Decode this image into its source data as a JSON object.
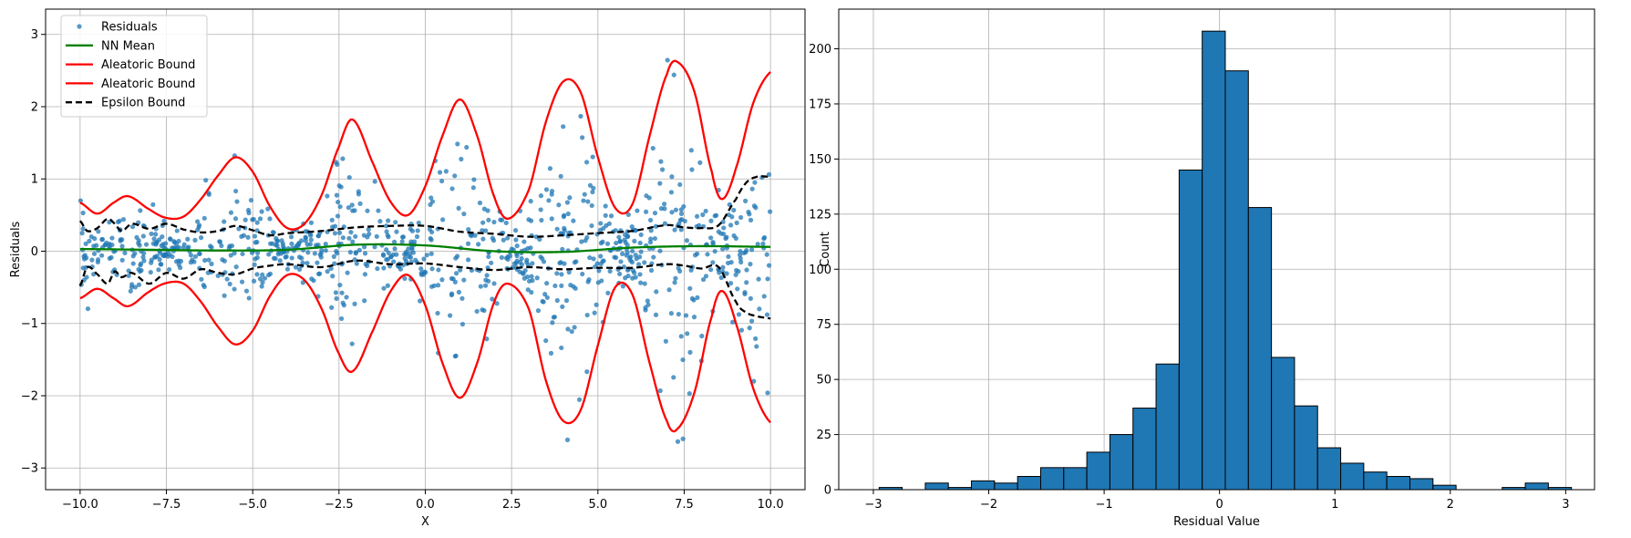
{
  "chart_data": [
    {
      "type": "scatter",
      "xlabel": "X",
      "ylabel": "Residuals",
      "xlim": [
        -11.0,
        11.0
      ],
      "ylim": [
        -3.3,
        3.35
      ],
      "xticks": [
        -10.0,
        -7.5,
        -5.0,
        -2.5,
        0.0,
        2.5,
        5.0,
        7.5,
        10.0
      ],
      "xtick_labels": [
        "−10.0",
        "−7.5",
        "−5.0",
        "−2.5",
        "0.0",
        "2.5",
        "5.0",
        "7.5",
        "10.0"
      ],
      "yticks": [
        -3,
        -2,
        -1,
        0,
        1,
        2,
        3
      ],
      "ytick_labels": [
        "−3",
        "−2",
        "−1",
        "0",
        "1",
        "2",
        "3"
      ],
      "grid": true,
      "legend_position": "top-left",
      "legend": [
        "Residuals",
        "NN Mean",
        "Aleatoric Bound",
        "Aleatoric Bound",
        "Epsilon Bound"
      ],
      "colors": {
        "residuals": "#1f77b4",
        "nn_mean": "#008000",
        "aleatoric": "#ff0000",
        "epsilon": "#000000"
      },
      "series": {
        "residuals": {
          "n_points": 1000,
          "x_range": [
            -10,
            10
          ]
        },
        "nn_mean": {
          "x": [
            -10,
            -8,
            -6,
            -4,
            -2,
            0,
            2,
            4,
            6,
            8,
            10
          ],
          "y": [
            0.03,
            0.02,
            0.01,
            0.02,
            0.09,
            0.08,
            0.0,
            -0.01,
            0.05,
            0.07,
            0.06
          ]
        },
        "aleatoric_upper": {
          "x": [
            -10,
            -9.5,
            -9,
            -8.6,
            -8,
            -7.5,
            -7,
            -6.5,
            -6,
            -5.5,
            -5,
            -4.5,
            -4,
            -3.5,
            -3,
            -2.5,
            -2.1,
            -1.5,
            -1,
            -0.5,
            0,
            0.5,
            1,
            1.5,
            2,
            2.4,
            3,
            3.5,
            4,
            4.5,
            5,
            5.5,
            6,
            6.5,
            7,
            7.3,
            7.8,
            8.3,
            8.6,
            9,
            9.5,
            10
          ],
          "y": [
            0.67,
            0.52,
            0.68,
            0.76,
            0.58,
            0.46,
            0.48,
            0.72,
            1.05,
            1.3,
            1.1,
            0.62,
            0.32,
            0.38,
            0.78,
            1.45,
            1.82,
            1.2,
            0.68,
            0.5,
            0.9,
            1.6,
            2.1,
            1.6,
            0.75,
            0.45,
            0.85,
            1.8,
            2.35,
            2.2,
            1.3,
            0.6,
            0.65,
            1.6,
            2.45,
            2.62,
            2.2,
            1.1,
            0.72,
            1.15,
            2.05,
            2.48
          ]
        },
        "aleatoric_lower": {
          "x": [
            -10,
            -9.5,
            -9,
            -8.6,
            -8,
            -7.5,
            -7,
            -6.5,
            -6,
            -5.5,
            -5,
            -4.5,
            -4,
            -3.5,
            -3,
            -2.5,
            -2.1,
            -1.5,
            -1,
            -0.5,
            0,
            0.5,
            1,
            1.5,
            2,
            2.4,
            3,
            3.5,
            4,
            4.5,
            5,
            5.5,
            6,
            6.5,
            7,
            7.3,
            7.8,
            8.3,
            8.6,
            9,
            9.5,
            10
          ],
          "y": [
            -0.65,
            -0.52,
            -0.66,
            -0.76,
            -0.56,
            -0.44,
            -0.45,
            -0.7,
            -1.05,
            -1.29,
            -1.1,
            -0.62,
            -0.33,
            -0.4,
            -0.8,
            -1.42,
            -1.66,
            -1.08,
            -0.55,
            -0.33,
            -0.75,
            -1.55,
            -2.03,
            -1.55,
            -0.7,
            -0.45,
            -0.8,
            -1.8,
            -2.35,
            -2.2,
            -1.3,
            -0.5,
            -0.6,
            -1.55,
            -2.35,
            -2.46,
            -1.95,
            -0.9,
            -0.55,
            -1.0,
            -1.9,
            -2.37
          ]
        },
        "epsilon_upper": {
          "x": [
            -10,
            -9.8,
            -9.5,
            -9.2,
            -9,
            -8.8,
            -8.5,
            -8,
            -7.5,
            -7,
            -6.5,
            -6,
            -5.5,
            -5,
            -4.5,
            -4,
            -3,
            -2,
            -1,
            0,
            1,
            2,
            3,
            4,
            5,
            6,
            7,
            7.5,
            8,
            8.5,
            9,
            9.3,
            9.6,
            10
          ],
          "y": [
            0.42,
            0.28,
            0.32,
            0.45,
            0.38,
            0.28,
            0.38,
            0.31,
            0.38,
            0.3,
            0.26,
            0.28,
            0.35,
            0.29,
            0.22,
            0.25,
            0.28,
            0.33,
            0.35,
            0.35,
            0.27,
            0.24,
            0.2,
            0.22,
            0.25,
            0.28,
            0.36,
            0.33,
            0.32,
            0.36,
            0.72,
            0.95,
            1.03,
            1.03
          ]
        },
        "epsilon_lower": {
          "x": [
            -10,
            -9.8,
            -9.5,
            -9.2,
            -9,
            -8.8,
            -8.5,
            -8,
            -7.5,
            -7,
            -6.5,
            -6,
            -5.5,
            -5,
            -4.5,
            -4,
            -3,
            -2,
            -1,
            0,
            1,
            2,
            3,
            4,
            5,
            6,
            7,
            7.5,
            8,
            8.5,
            9,
            9.3,
            9.6,
            10
          ],
          "y": [
            -0.48,
            -0.22,
            -0.32,
            -0.45,
            -0.28,
            -0.36,
            -0.3,
            -0.45,
            -0.3,
            -0.38,
            -0.25,
            -0.3,
            -0.32,
            -0.24,
            -0.2,
            -0.18,
            -0.22,
            -0.13,
            -0.18,
            -0.17,
            -0.22,
            -0.26,
            -0.22,
            -0.25,
            -0.23,
            -0.23,
            -0.18,
            -0.2,
            -0.24,
            -0.22,
            -0.7,
            -0.85,
            -0.9,
            -0.93
          ]
        }
      }
    },
    {
      "type": "bar",
      "xlabel": "Residual Value",
      "ylabel": "Count",
      "xlim": [
        -3.3,
        3.25
      ],
      "ylim": [
        0,
        218
      ],
      "xticks": [
        -3,
        -2,
        -1,
        0,
        1,
        2,
        3
      ],
      "xtick_labels": [
        "−3",
        "−2",
        "−1",
        "0",
        "1",
        "2",
        "3"
      ],
      "yticks": [
        0,
        25,
        50,
        75,
        100,
        125,
        150,
        175,
        200
      ],
      "ytick_labels": [
        "0",
        "25",
        "50",
        "75",
        "100",
        "125",
        "150",
        "175",
        "200"
      ],
      "grid": true,
      "color": "#1f77b4",
      "edge_color": "#000000",
      "bin_start": -2.95,
      "bin_width": 0.2,
      "counts": [
        1,
        0,
        3,
        1,
        4,
        3,
        6,
        10,
        10,
        17,
        25,
        37,
        57,
        145,
        208,
        190,
        128,
        60,
        38,
        19,
        12,
        8,
        6,
        5,
        2,
        0,
        0,
        1,
        3,
        1
      ]
    }
  ]
}
